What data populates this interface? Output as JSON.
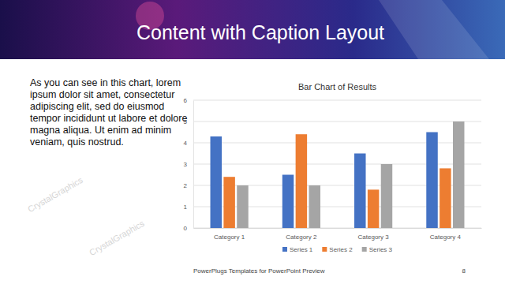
{
  "slide": {
    "title": "Content with Caption Layout",
    "caption": "As you can see in this chart, lorem ipsum dolor sit amet, consectetur adipiscing elit, sed do eiusmod tempor incididunt ut labore et dolore magna aliqua. Ut enim ad minim veniam, quis nostrud.",
    "footer": "PowerPlugs Templates for PowerPoint Preview",
    "page_number": 8,
    "watermark": "CrystalGraphics"
  },
  "chart_data": {
    "type": "bar",
    "title": "Bar Chart of Results",
    "categories": [
      "Category 1",
      "Category 2",
      "Category 3",
      "Category 4"
    ],
    "series": [
      {
        "name": "Series 1",
        "color": "#4472c4",
        "values": [
          4.3,
          2.5,
          3.5,
          4.5
        ]
      },
      {
        "name": "Series 2",
        "color": "#ed7d31",
        "values": [
          2.4,
          4.4,
          1.8,
          2.8
        ]
      },
      {
        "name": "Series 3",
        "color": "#a5a5a5",
        "values": [
          2.0,
          2.0,
          3.0,
          5.0
        ]
      }
    ],
    "ylim": [
      0,
      6
    ],
    "yticks": [
      0,
      1,
      2,
      3,
      4,
      5,
      6
    ],
    "grid": true,
    "legend": "bottom"
  }
}
